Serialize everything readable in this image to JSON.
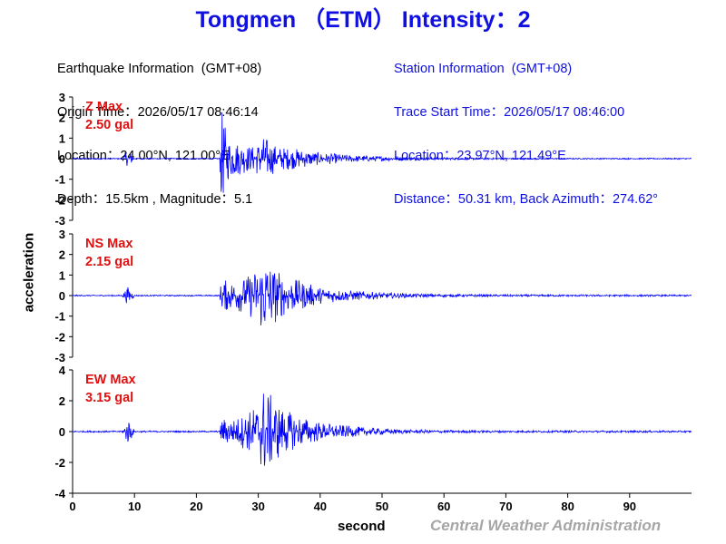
{
  "header": {
    "title": "Tongmen （ETM） Intensity：2",
    "earthquake": {
      "heading": "Earthquake Information  (GMT+08)",
      "origin_time": "Origin Time：2026/05/17 08:46:14",
      "location": "Location：24.00°N, 121.00°E",
      "depth_magnitude": "Depth：15.5km , Magnitude：5.1"
    },
    "station": {
      "heading": "Station Information  (GMT+08)",
      "trace_start": "Trace Start Time：2026/05/17 08:46:00",
      "location": "Location：23.97°N, 121.49°E",
      "distance": "Distance：50.31 km, Back Azimuth：274.62°"
    }
  },
  "footer": {
    "agency": "Central Weather Administration"
  },
  "colors": {
    "title": "#1010e0",
    "trace": "#0000ff",
    "max_label": "#e01010",
    "agency": "#a6a6a6"
  },
  "chart_data": {
    "type": "line",
    "xlabel": "second",
    "ylabel": "acceleration",
    "xlim": [
      0,
      100
    ],
    "x_ticks": [
      0,
      10,
      20,
      30,
      40,
      50,
      60,
      70,
      80,
      90
    ],
    "grid": false,
    "series": [
      {
        "name": "Z",
        "max_label": "Z Max",
        "max_value": "2.50 gal",
        "ylim": [
          -3,
          3
        ],
        "y_ticks": [
          3,
          2,
          1,
          0,
          -1,
          -2,
          -3
        ],
        "envelope": [
          [
            0,
            0.03
          ],
          [
            8,
            0.03
          ],
          [
            8.5,
            0.3
          ],
          [
            9,
            0.4
          ],
          [
            9.5,
            0.3
          ],
          [
            10,
            0.03
          ],
          [
            23.8,
            0.03
          ],
          [
            24,
            2.5
          ],
          [
            25,
            1.1
          ],
          [
            27,
            0.8
          ],
          [
            29,
            0.6
          ],
          [
            31,
            1.1
          ],
          [
            33,
            0.6
          ],
          [
            36,
            0.5
          ],
          [
            40,
            0.3
          ],
          [
            45,
            0.18
          ],
          [
            50,
            0.12
          ],
          [
            55,
            0.08
          ],
          [
            60,
            0.06
          ],
          [
            70,
            0.04
          ],
          [
            80,
            0.03
          ],
          [
            100,
            0.03
          ]
        ]
      },
      {
        "name": "NS",
        "max_label": "NS Max",
        "max_value": "2.15 gal",
        "ylim": [
          -3,
          3
        ],
        "y_ticks": [
          3,
          2,
          1,
          0,
          -1,
          -2,
          -3
        ],
        "envelope": [
          [
            0,
            0.03
          ],
          [
            8,
            0.03
          ],
          [
            8.5,
            0.3
          ],
          [
            9,
            0.45
          ],
          [
            9.5,
            0.3
          ],
          [
            10,
            0.03
          ],
          [
            23.8,
            0.03
          ],
          [
            24,
            0.8
          ],
          [
            26,
            0.7
          ],
          [
            28,
            0.9
          ],
          [
            30,
            1.4
          ],
          [
            31,
            2.15
          ],
          [
            32,
            1.6
          ],
          [
            34,
            1.0
          ],
          [
            36,
            0.8
          ],
          [
            40,
            0.4
          ],
          [
            45,
            0.25
          ],
          [
            50,
            0.15
          ],
          [
            55,
            0.1
          ],
          [
            60,
            0.07
          ],
          [
            70,
            0.05
          ],
          [
            100,
            0.04
          ]
        ]
      },
      {
        "name": "EW",
        "max_label": "EW Max",
        "max_value": "3.15 gal",
        "ylim": [
          -4,
          4
        ],
        "y_ticks": [
          4,
          2,
          0,
          -2,
          -4
        ],
        "envelope": [
          [
            0,
            0.05
          ],
          [
            8,
            0.05
          ],
          [
            8.5,
            0.5
          ],
          [
            9,
            0.9
          ],
          [
            9.5,
            0.5
          ],
          [
            10,
            0.05
          ],
          [
            23.8,
            0.05
          ],
          [
            24,
            0.9
          ],
          [
            26,
            0.8
          ],
          [
            28,
            1.2
          ],
          [
            30,
            1.8
          ],
          [
            31,
            3.15
          ],
          [
            32,
            2.4
          ],
          [
            34,
            1.5
          ],
          [
            36,
            1.1
          ],
          [
            40,
            0.6
          ],
          [
            45,
            0.35
          ],
          [
            50,
            0.2
          ],
          [
            55,
            0.12
          ],
          [
            60,
            0.09
          ],
          [
            70,
            0.07
          ],
          [
            100,
            0.06
          ]
        ]
      }
    ]
  }
}
